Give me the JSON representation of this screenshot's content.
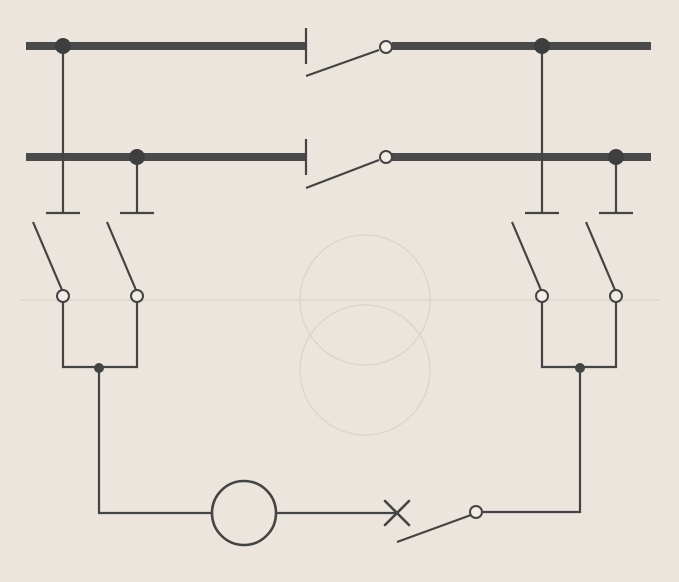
{
  "diagram": {
    "background_color": "#ebe5dd",
    "line_color": "#444444",
    "bus_color": "#4a4a4a",
    "components": {
      "busbars": [
        "upper-left-busbar",
        "lower-left-busbar",
        "upper-right-busbar",
        "lower-right-busbar"
      ],
      "bus_couplers": [
        "upper-bus-coupler-switch",
        "lower-bus-coupler-switch"
      ],
      "disconnectors": [
        "left-disconnector-1",
        "left-disconnector-2",
        "right-disconnector-1",
        "right-disconnector-2"
      ],
      "line_devices": [
        "meter-circle",
        "breaker-x",
        "line-disconnector"
      ]
    }
  }
}
